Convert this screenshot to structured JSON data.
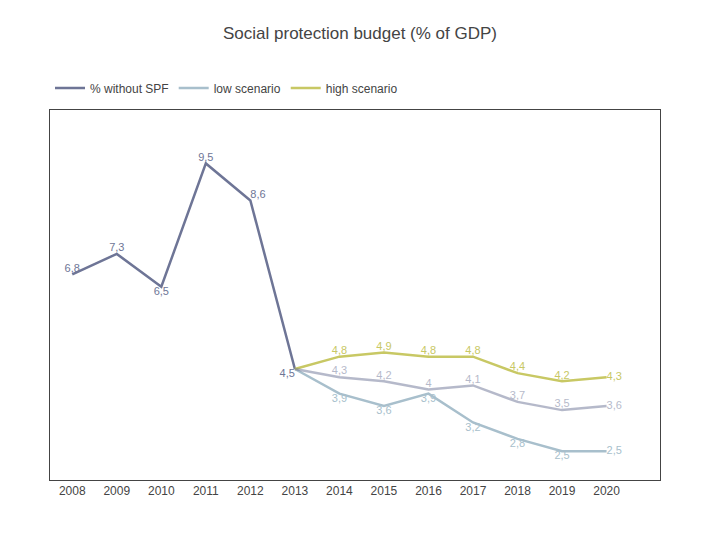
{
  "chart_data": {
    "type": "line",
    "title": "Social protection budget (% of GDP)",
    "x": [
      2008,
      2009,
      2010,
      2011,
      2012,
      2013,
      2014,
      2015,
      2016,
      2017,
      2018,
      2019,
      2020
    ],
    "series": [
      {
        "name": "% without SPF",
        "color": "#6e7596",
        "values": [
          6.8,
          7.3,
          6.5,
          9.5,
          8.6,
          4.5,
          null,
          null,
          null,
          null,
          null,
          null,
          null
        ],
        "value_labels": [
          "6,8",
          "7,3",
          "6,5",
          "9,5",
          "8,6",
          "4,5",
          null,
          null,
          null,
          null,
          null,
          null,
          null
        ]
      },
      {
        "name": "low scenario",
        "color": "#a8bfcc",
        "values": [
          null,
          null,
          null,
          null,
          null,
          4.5,
          3.9,
          3.6,
          3.9,
          3.2,
          2.8,
          2.5,
          2.5
        ],
        "value_labels": [
          null,
          null,
          null,
          null,
          null,
          null,
          "3,9",
          "3,6",
          "3,9",
          "3,2",
          "2,8",
          "2,5",
          "2,5"
        ]
      },
      {
        "name": "high scenario",
        "color": "#c8c864",
        "values": [
          null,
          null,
          null,
          null,
          null,
          4.5,
          4.8,
          4.9,
          4.8,
          4.8,
          4.4,
          4.2,
          4.3
        ],
        "value_labels": [
          null,
          null,
          null,
          null,
          null,
          null,
          "4,8",
          "4,9",
          "4,8",
          "4,8",
          "4,4",
          "4,2",
          "4,3"
        ]
      },
      {
        "color": "#6e7596",
        "values": [
          null,
          null,
          null,
          null,
          null,
          4.5,
          4.3,
          4.2,
          4.0,
          4.1,
          3.7,
          3.5,
          3.6
        ],
        "value_labels": [
          null,
          null,
          null,
          null,
          null,
          null,
          "4,3",
          "4,2",
          "4",
          "4,1",
          "3,7",
          "3,5",
          "3,6"
        ]
      }
    ],
    "xlim": [
      2007.5,
      2021.2
    ],
    "xticks": [
      2008,
      2009,
      2010,
      2011,
      2012,
      2013,
      2014,
      2015,
      2016,
      2017,
      2018,
      2019,
      2020
    ],
    "ylim": [
      1.8,
      10.8
    ],
    "grid": false,
    "legend": "upper left",
    "data_labels": true,
    "tick_labels": "x"
  }
}
